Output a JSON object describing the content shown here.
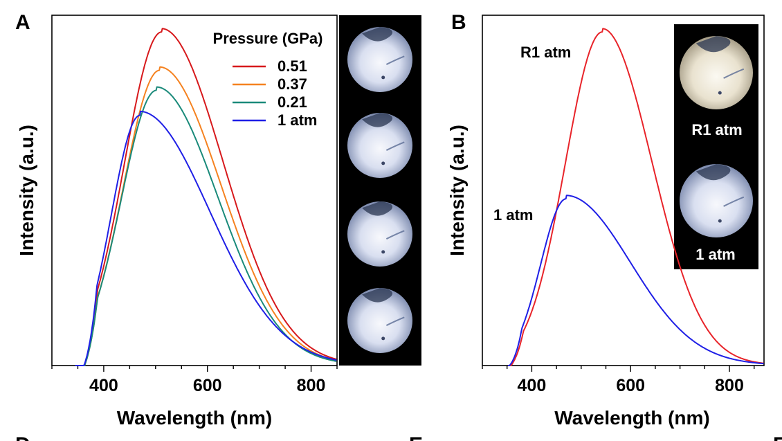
{
  "colors": {
    "axis": "#000000",
    "photo_panel": "#000000",
    "red": "#d7191c",
    "orange": "#f58220",
    "teal": "#1a8a7a",
    "blue": "#1f1fe6",
    "crimson": "#e8242a"
  },
  "cut_labels": [
    "D",
    "E",
    "F"
  ],
  "chart_data": [
    {
      "type": "line",
      "panel_label": "A",
      "xlabel": "Wavelength (nm)",
      "ylabel": "Intensity (a.u.)",
      "xlim": [
        300,
        850
      ],
      "ylim": [
        0,
        1.05
      ],
      "x_ticks": [
        400,
        600,
        800
      ],
      "y_ticks": [],
      "grid": false,
      "legend": {
        "title": "Pressure (GPa)",
        "placement": "top-right"
      },
      "photo_strip": {
        "count": 4,
        "placement": "right",
        "labels": []
      },
      "series": [
        {
          "name": "0.51",
          "color_key": "red",
          "onset": 363,
          "peak_x": 512,
          "peak_y": 1.0,
          "width_left": 72,
          "width_right": 118,
          "tail": 0.01
        },
        {
          "name": "0.37",
          "color_key": "orange",
          "onset": 363,
          "peak_x": 508,
          "peak_y": 0.885,
          "width_left": 70,
          "width_right": 118,
          "tail": 0.01
        },
        {
          "name": "0.21",
          "color_key": "teal",
          "onset": 363,
          "peak_x": 502,
          "peak_y": 0.825,
          "width_left": 68,
          "width_right": 118,
          "tail": 0.01
        },
        {
          "name": "1 atm",
          "color_key": "blue",
          "onset": 362,
          "peak_x": 470,
          "peak_y": 0.75,
          "width_left": 55,
          "width_right": 135,
          "tail": 0.012
        }
      ]
    },
    {
      "type": "line",
      "panel_label": "B",
      "xlabel": "Wavelength (nm)",
      "ylabel": "Intensity (a.u.)",
      "xlim": [
        300,
        870
      ],
      "ylim": [
        0,
        1.05
      ],
      "x_ticks": [
        400,
        600,
        800
      ],
      "y_ticks": [],
      "grid": false,
      "legend": null,
      "photo_strip": {
        "count": 2,
        "placement": "top-right",
        "labels": [
          "R1 atm",
          "1 atm"
        ]
      },
      "series": [
        {
          "name": "R1 atm",
          "color_key": "crimson",
          "onset": 358,
          "peak_x": 543,
          "peak_y": 1.0,
          "width_left": 75,
          "width_right": 100,
          "tail": 0.01
        },
        {
          "name": "1 atm",
          "color_key": "blue",
          "onset": 355,
          "peak_x": 470,
          "peak_y": 0.5,
          "width_left": 52,
          "width_right": 130,
          "tail": 0.01
        }
      ]
    }
  ]
}
